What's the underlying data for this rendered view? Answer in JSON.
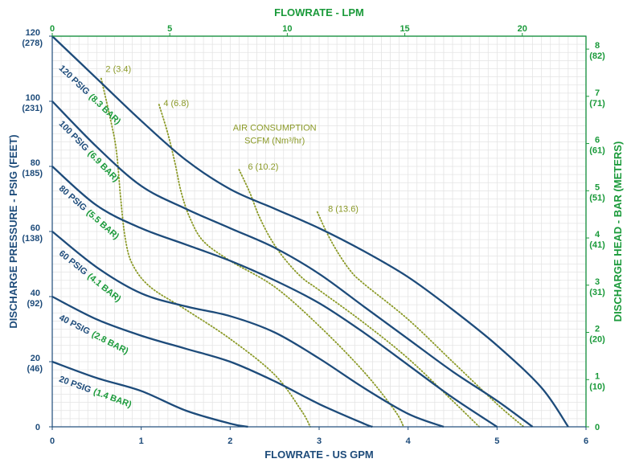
{
  "chart_data": {
    "type": "line",
    "colors": {
      "navy": "#1d4b7a",
      "green": "#1a9a3a",
      "olive": "#8b9a27",
      "grid": "#e4e4e4"
    },
    "x_axis_bottom": {
      "label": "FLOWRATE - US GPM",
      "range": [
        0,
        6
      ],
      "ticks": [
        0,
        1,
        2,
        3,
        4,
        5,
        6
      ],
      "tick_labels": [
        "0",
        "1",
        "2",
        "3",
        "4",
        "5",
        "6"
      ]
    },
    "x_axis_top": {
      "label": "FLOWRATE - LPM",
      "range": [
        0,
        22.71
      ],
      "ticks": [
        0,
        5,
        10,
        15,
        20
      ],
      "tick_labels": [
        "0",
        "5",
        "10",
        "15",
        "20"
      ]
    },
    "y_axis_left": {
      "label": "DISCHARGE PRESSURE - PSIG (FEET)",
      "range": [
        0,
        120
      ],
      "ticks": [
        0,
        20,
        40,
        60,
        80,
        100,
        120
      ],
      "tick_labels": [
        "0",
        "20",
        "40",
        "60",
        "80",
        "100",
        "120"
      ],
      "sub_labels": [
        "",
        "(46)",
        "(92)",
        "(138)",
        "(185)",
        "(231)",
        "(278)"
      ]
    },
    "y_axis_right": {
      "label": "DISCHARGE HEAD - BAR (METERS)",
      "range": [
        0,
        8.274
      ],
      "ticks": [
        0,
        1,
        2,
        3,
        4,
        5,
        6,
        7,
        8
      ],
      "tick_labels": [
        "0",
        "1",
        "2",
        "3",
        "4",
        "5",
        "6",
        "7",
        "8"
      ],
      "sub_labels": [
        "",
        "(10)",
        "(20)",
        "(31)",
        "(41)",
        "(51)",
        "(61)",
        "(71)",
        "(82)"
      ]
    },
    "grid": true,
    "series": [
      {
        "name_psig": "120 PSIG",
        "name_bar": "(8.3 BAR)",
        "label_x": 0.07,
        "label_y": 110,
        "x": [
          0,
          0.5,
          1.0,
          1.5,
          2.0,
          2.5,
          3.0,
          3.5,
          4.0,
          4.5,
          5.0,
          5.5,
          5.8
        ],
        "y": [
          120,
          107,
          94,
          82,
          73,
          67,
          61,
          54,
          46,
          36,
          25,
          12,
          0
        ]
      },
      {
        "name_psig": "100 PSIG",
        "name_bar": "(6.9 BAR)",
        "label_x": 0.07,
        "label_y": 93,
        "x": [
          0,
          0.5,
          1.0,
          1.5,
          2.0,
          2.5,
          3.0,
          3.5,
          4.0,
          4.5,
          5.0,
          5.4
        ],
        "y": [
          100,
          86,
          74,
          67,
          61,
          55,
          47,
          37,
          27,
          17,
          8,
          0
        ]
      },
      {
        "name_psig": "80 PSIG",
        "name_bar": "(5.5 BAR)",
        "label_x": 0.07,
        "label_y": 73,
        "x": [
          0,
          0.5,
          1.0,
          1.5,
          2.0,
          2.5,
          3.0,
          3.5,
          4.0,
          4.5,
          5.0
        ],
        "y": [
          80,
          68,
          61,
          56,
          51,
          45,
          38,
          29,
          19,
          9,
          0
        ]
      },
      {
        "name_psig": "60 PSIG",
        "name_bar": "(4.1 BAR)",
        "label_x": 0.07,
        "label_y": 53,
        "x": [
          0,
          0.5,
          1.0,
          1.5,
          2.0,
          2.5,
          3.0,
          3.5,
          4.0,
          4.4
        ],
        "y": [
          60,
          49,
          41,
          37,
          34,
          29,
          21,
          12,
          4,
          0
        ]
      },
      {
        "name_psig": "40 PSIG",
        "name_bar": "(2.8 BAR)",
        "label_x": 0.07,
        "label_y": 33,
        "x": [
          0,
          0.5,
          1.0,
          1.5,
          2.0,
          2.5,
          3.0,
          3.5,
          3.6
        ],
        "y": [
          40,
          33,
          28,
          24,
          20,
          14,
          7,
          1,
          0
        ]
      },
      {
        "name_psig": "20 PSIG",
        "name_bar": "(1.4 BAR)",
        "label_x": 0.07,
        "label_y": 14,
        "x": [
          0,
          0.5,
          1.0,
          1.5,
          2.0,
          2.2
        ],
        "y": [
          20,
          15,
          11,
          5,
          1,
          0
        ]
      }
    ],
    "air_consumption": {
      "title_line1": "AIR CONSUMPTION",
      "title_line2": "SCFM (Nm³/hr)",
      "title_x": 2.5,
      "title_y": 91,
      "lines": [
        {
          "label": "2 (3.4)",
          "label_x": 0.6,
          "label_y": 109,
          "x": [
            0.55,
            0.65,
            0.72,
            0.77,
            0.82,
            0.9,
            1.1,
            1.5,
            2.0,
            2.5,
            2.8,
            2.9
          ],
          "y": [
            107,
            95,
            85,
            70,
            58,
            50,
            43,
            36,
            27,
            16,
            5,
            0
          ]
        },
        {
          "label": "4 (6.8)",
          "label_x": 1.25,
          "label_y": 98.5,
          "x": [
            1.2,
            1.3,
            1.38,
            1.45,
            1.55,
            1.7,
            2.0,
            2.5,
            3.0,
            3.5,
            3.85,
            3.95
          ],
          "y": [
            99,
            90,
            81,
            72,
            64,
            57,
            51,
            43,
            31,
            17,
            5,
            0
          ]
        },
        {
          "label": "6 (10.2)",
          "label_x": 2.2,
          "label_y": 79,
          "x": [
            2.1,
            2.22,
            2.32,
            2.45,
            2.6,
            2.8,
            3.0,
            3.5,
            4.0,
            4.5,
            4.8
          ],
          "y": [
            79,
            72,
            65,
            58,
            52,
            46,
            42,
            32,
            21,
            8,
            0
          ]
        },
        {
          "label": "8 (13.6)",
          "label_x": 3.1,
          "label_y": 66,
          "x": [
            2.98,
            3.08,
            3.2,
            3.35,
            3.5,
            4.0,
            4.5,
            5.0,
            5.3
          ],
          "y": [
            66,
            60,
            54,
            48,
            44,
            33,
            20,
            7,
            0
          ]
        }
      ]
    }
  }
}
